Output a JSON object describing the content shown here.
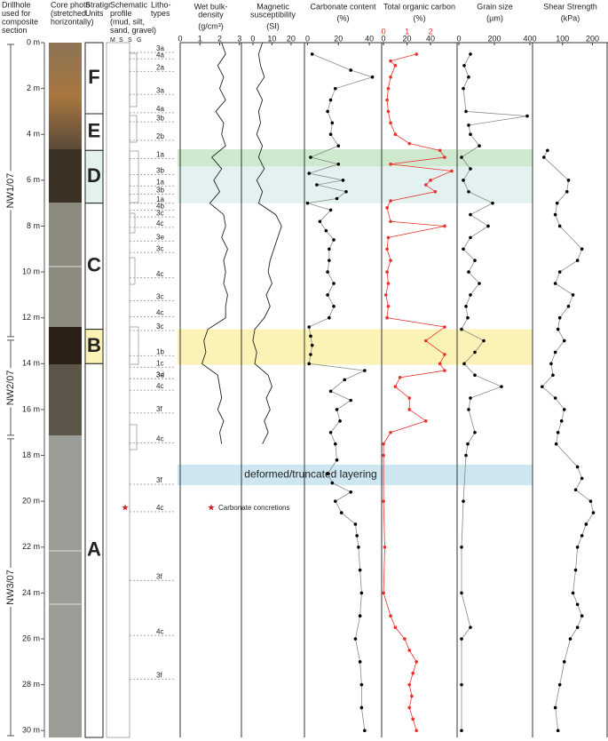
{
  "headers": [
    {
      "lines": [
        "Drillhole",
        "used for",
        "composite",
        "section"
      ]
    },
    {
      "lines": [
        "Core photo",
        "(stretched",
        "horizontally)"
      ]
    },
    {
      "lines": [
        "Stratigr.",
        "Units"
      ]
    },
    {
      "lines": [
        "Schematic",
        "profile",
        "(mud, silt,",
        "sand, gravel)"
      ]
    },
    {
      "lines": [
        "Litho-",
        "types"
      ]
    }
  ],
  "grain_classes": [
    "M",
    "S",
    "S",
    "G"
  ],
  "depth_axis": {
    "ylim": [
      0,
      30.3
    ],
    "yticks": [
      {
        "value": 0,
        "label": "0 m"
      },
      {
        "value": 2,
        "label": "2 m"
      },
      {
        "value": 4,
        "label": "4 m"
      },
      {
        "value": 6,
        "label": "6 m"
      },
      {
        "value": 8,
        "label": "8 m"
      },
      {
        "value": 10,
        "label": "10 m"
      },
      {
        "value": 12,
        "label": "12 m"
      },
      {
        "value": 14,
        "label": "14 m"
      },
      {
        "value": 16,
        "label": "16 m"
      },
      {
        "value": 18,
        "label": "18 m"
      },
      {
        "value": 20,
        "label": "20 m"
      },
      {
        "value": 22,
        "label": "22 m"
      },
      {
        "value": 24,
        "label": "24 m"
      },
      {
        "value": 26,
        "label": "26 m"
      },
      {
        "value": 28,
        "label": "28 m"
      },
      {
        "value": 30,
        "label": "30 m"
      }
    ]
  },
  "drillholes": [
    {
      "label": "NW1/07",
      "top": 0,
      "bottom": 12.9
    },
    {
      "label": "NW2/07",
      "top": 12.9,
      "bottom": 17.2
    },
    {
      "label": "NW3/07",
      "top": 17.2,
      "bottom": 30.3
    }
  ],
  "units": [
    {
      "label": "F",
      "top": 0,
      "bottom": 3.1,
      "color": "#ffffff"
    },
    {
      "label": "E",
      "top": 3.1,
      "bottom": 4.7,
      "color": "#ffffff"
    },
    {
      "label": "D",
      "top": 4.7,
      "bottom": 7.0,
      "color": "#e4f2ec"
    },
    {
      "label": "C",
      "top": 7.0,
      "bottom": 12.5,
      "color": "#ffffff"
    },
    {
      "label": "B",
      "top": 12.5,
      "bottom": 14.0,
      "color": "#fbf3b5"
    },
    {
      "label": "A",
      "top": 14.0,
      "bottom": 30.3,
      "color": "#ffffff"
    }
  ],
  "lithotypes": [
    {
      "label": "3a",
      "depth": 0.27
    },
    {
      "label": "4a",
      "depth": 0.55
    },
    {
      "label": "2a",
      "depth": 1.1
    },
    {
      "label": "3a",
      "depth": 2.1
    },
    {
      "label": "4a",
      "depth": 2.9
    },
    {
      "label": "3b",
      "depth": 3.3
    },
    {
      "label": "2b",
      "depth": 4.1
    },
    {
      "label": "1a",
      "depth": 4.9
    },
    {
      "label": "3b",
      "depth": 5.6
    },
    {
      "label": "1a",
      "depth": 6.1
    },
    {
      "label": "3b",
      "depth": 6.45
    },
    {
      "label": "1a",
      "depth": 6.85
    },
    {
      "label": "4b",
      "depth": 7.15
    },
    {
      "label": "3c",
      "depth": 7.45
    },
    {
      "label": "4c",
      "depth": 7.9
    },
    {
      "label": "3e",
      "depth": 8.5
    },
    {
      "label": "3c",
      "depth": 9.0
    },
    {
      "label": "4c",
      "depth": 10.1
    },
    {
      "label": "3c",
      "depth": 11.1
    },
    {
      "label": "4c",
      "depth": 11.8
    },
    {
      "label": "3c",
      "depth": 12.4
    },
    {
      "label": "1b",
      "depth": 13.5
    },
    {
      "label": "1c",
      "depth": 14.0
    },
    {
      "label": "3e",
      "depth": 14.5
    },
    {
      "label": "3d",
      "depth": 14.5
    },
    {
      "label": "4c",
      "depth": 15.0
    },
    {
      "label": "3f",
      "depth": 16.0
    },
    {
      "label": "4c",
      "depth": 17.3
    },
    {
      "label": "3f",
      "depth": 19.1
    },
    {
      "label": "4c",
      "depth": 20.3
    },
    {
      "label": "3f",
      "depth": 23.3
    },
    {
      "label": "4c",
      "depth": 25.7
    },
    {
      "label": "3f",
      "depth": 27.6
    }
  ],
  "highlights": [
    {
      "top": 4.65,
      "bottom": 5.4,
      "color": "#cfe9cf"
    },
    {
      "top": 5.4,
      "bottom": 7.0,
      "color": "#e3f2f0"
    },
    {
      "top": 12.5,
      "bottom": 14.05,
      "color": "#fbf3b5"
    },
    {
      "top": 18.4,
      "bottom": 19.3,
      "color": "#cde6f0",
      "label": "deformed/truncated layering"
    }
  ],
  "concretion": {
    "depth": 20.3,
    "label": "Carbonate concretions"
  },
  "chart_data": [
    {
      "type": "line",
      "title": [
        "Wet bulk-",
        "density"
      ],
      "unit": "(g/cm³)",
      "xlim": [
        0,
        3.1
      ],
      "xticks": [
        0,
        1,
        2,
        3
      ],
      "markers": false,
      "series": [
        {
          "color": "#222222",
          "depth": [
            0,
            0.5,
            1,
            1.5,
            2,
            2.5,
            3,
            3.5,
            4,
            4.5,
            5,
            5.5,
            6,
            6.5,
            7,
            7.5,
            8,
            8.5,
            9,
            9.5,
            10,
            10.5,
            11,
            11.5,
            12,
            12.5,
            13,
            13.5,
            14,
            14.5,
            15,
            15.5,
            16,
            16.5,
            17,
            17.5
          ],
          "values": [
            2.1,
            2.3,
            1.9,
            2.2,
            2.0,
            2.3,
            1.8,
            2.2,
            2.1,
            2.3,
            1.6,
            2.1,
            1.7,
            2.0,
            1.5,
            2.2,
            2.3,
            2.1,
            2.4,
            2.2,
            2.3,
            2.2,
            2.4,
            2.3,
            2.3,
            1.4,
            1.2,
            1.3,
            1.1,
            1.9,
            2.0,
            2.1,
            1.9,
            2.2,
            2.0,
            2.1
          ]
        }
      ]
    },
    {
      "type": "line",
      "title": [
        "Magnetic",
        "susceptibility"
      ],
      "unit": "(SI)",
      "xlim": [
        -6,
        27
      ],
      "xticks": [
        0,
        10,
        20
      ],
      "markers": false,
      "series": [
        {
          "color": "#222222",
          "depth": [
            0,
            0.5,
            1,
            1.5,
            2,
            2.5,
            3,
            3.5,
            4,
            4.5,
            5,
            5.5,
            6,
            6.5,
            7,
            7.5,
            8,
            8.5,
            9,
            9.5,
            10,
            10.5,
            11,
            11.5,
            12,
            12.5,
            13,
            13.5,
            14,
            14.5,
            15,
            15.5,
            16,
            16.5,
            17,
            17.5
          ],
          "values": [
            5,
            3,
            4,
            6,
            2,
            5,
            3,
            4,
            2,
            5,
            3,
            6,
            2,
            5,
            3,
            12,
            15,
            13,
            11,
            9,
            8,
            10,
            7,
            9,
            6,
            1,
            0,
            2,
            1,
            8,
            10,
            7,
            9,
            6,
            8,
            5
          ]
        }
      ]
    },
    {
      "type": "line",
      "title": [
        "Carbonate content"
      ],
      "unit": "(%)",
      "xlim": [
        -2,
        48
      ],
      "xticks": [
        0,
        20,
        40
      ],
      "markers": true,
      "series": [
        {
          "color": "#000000",
          "depth": [
            0.5,
            1.2,
            1.5,
            2.0,
            2.5,
            3.0,
            3.5,
            4.0,
            4.5,
            5.0,
            5.3,
            5.7,
            6.0,
            6.2,
            6.5,
            6.8,
            7.0,
            7.3,
            7.8,
            8.2,
            8.6,
            9.0,
            9.5,
            10.0,
            10.5,
            11.0,
            11.5,
            12.0,
            12.4,
            12.8,
            13.2,
            13.6,
            14.0,
            14.3,
            14.7,
            15.2,
            15.6,
            16.0,
            16.5,
            17.0,
            17.5,
            18.2,
            18.8,
            19.2,
            19.6,
            20.0,
            20.5,
            21.0,
            21.5,
            22.0,
            23.0,
            24.0,
            25.0,
            26.0,
            27.0,
            28.0,
            29.0,
            30.0
          ],
          "values": [
            3,
            28,
            42,
            18,
            15,
            13,
            16,
            15,
            20,
            2,
            20,
            1,
            23,
            6,
            25,
            19,
            0,
            15,
            8,
            12,
            17,
            14,
            14,
            13,
            17,
            13,
            17,
            14,
            1,
            2,
            3,
            2,
            1,
            37,
            24,
            15,
            28,
            19,
            21,
            15,
            18,
            19,
            13,
            16,
            28,
            18,
            22,
            31,
            32,
            33,
            34,
            35,
            34,
            31,
            34,
            35,
            35,
            37
          ]
        }
      ]
    },
    {
      "type": "line",
      "title": [
        "Total organic carbon"
      ],
      "unit": "(%)",
      "xlim": [
        -0.08,
        3.13
      ],
      "xticks": [
        0,
        1,
        2
      ],
      "x2lim": [
        -1.5,
        62.6
      ],
      "x2ticks": [
        0,
        20,
        40
      ],
      "markers": true,
      "series": [
        {
          "color": "#e8322c",
          "depth": [
            0.5,
            0.8,
            1.0,
            1.5,
            2.0,
            2.5,
            3.0,
            3.5,
            4.0,
            4.4,
            4.7,
            5.0,
            5.3,
            5.6,
            6.0,
            6.2,
            6.5,
            6.9,
            7.2,
            7.8,
            8.0,
            8.5,
            9.0,
            9.5,
            10.0,
            10.5,
            11.0,
            11.5,
            12.0,
            12.4,
            13.0,
            13.6,
            14.0,
            14.3,
            14.6,
            15.0,
            15.5,
            16.0,
            16.5,
            17.0,
            17.5,
            18,
            20,
            22,
            24,
            25.0,
            25.5,
            26.0,
            26.5,
            27.0,
            27.5,
            28.0,
            28.5,
            29.0,
            29.5,
            30.0
          ],
          "values": [
            1.4,
            0.3,
            0.5,
            0.3,
            0.2,
            0.15,
            0.2,
            0.3,
            0.5,
            1.1,
            2.4,
            2.6,
            0.3,
            2.9,
            2.0,
            1.8,
            2.2,
            0.3,
            0.15,
            0.3,
            2.6,
            0.2,
            0.15,
            0.3,
            0.15,
            0.2,
            0.1,
            0.2,
            0.15,
            2.6,
            1.8,
            2.6,
            2.4,
            2.6,
            0.7,
            0.5,
            1.1,
            1.1,
            1.8,
            0.3,
            0,
            0,
            0,
            0.05,
            0,
            0.3,
            0.5,
            0.9,
            1.1,
            1.4,
            1.25,
            1.1,
            1.2,
            1.1,
            1.25,
            1.4
          ]
        }
      ]
    },
    {
      "type": "line",
      "title": [
        "Grain size"
      ],
      "unit": "(µm)",
      "xlim": [
        -10,
        415
      ],
      "xticks": [
        0,
        200,
        400
      ],
      "markers": true,
      "series": [
        {
          "color": "#000000",
          "depth": [
            0.5,
            1.0,
            1.5,
            2.0,
            3.0,
            3.2,
            3.6,
            4.0,
            4.5,
            5.0,
            5.5,
            6.0,
            6.5,
            7.0,
            7.5,
            8.0,
            8.5,
            9.0,
            9.5,
            10.0,
            10.5,
            11.0,
            11.5,
            12.0,
            12.5,
            13.0,
            13.5,
            14.0,
            14.5,
            15.0,
            15.5,
            16.0,
            17.0,
            17.5,
            18.0,
            20.0,
            22.0,
            24.0,
            25.5,
            26.0,
            28.0,
            30.0
          ],
          "values": [
            65,
            30,
            55,
            25,
            40,
            385,
            55,
            65,
            115,
            15,
            65,
            25,
            55,
            190,
            65,
            165,
            65,
            25,
            90,
            55,
            115,
            65,
            40,
            50,
            15,
            140,
            90,
            30,
            90,
            240,
            65,
            55,
            90,
            50,
            40,
            25,
            15,
            15,
            65,
            15,
            15,
            15
          ]
        }
      ]
    },
    {
      "type": "line",
      "title": [
        "Shear Strength"
      ],
      "unit": "(kPa)",
      "xlim": [
        0,
        252
      ],
      "xticks": [
        100,
        200
      ],
      "markers": true,
      "series": [
        {
          "color": "#000000",
          "depth": [
            4.7,
            5.0,
            6.0,
            6.5,
            7.0,
            7.5,
            8.0,
            9.0,
            9.5,
            10.0,
            10.5,
            11.0,
            11.5,
            12.0,
            12.5,
            13.0,
            13.5,
            14.0,
            14.5,
            15.0,
            15.5,
            16.0,
            16.5,
            17.0,
            17.5,
            18.5,
            19.0,
            19.5,
            20.0,
            20.5,
            21.0,
            21.5,
            22.0,
            23.0,
            24.0,
            24.5,
            25.0,
            25.5,
            26.0,
            27.0,
            28.0,
            29.0,
            30.0
          ],
          "values": [
            50,
            38,
            120,
            115,
            82,
            76,
            91,
            165,
            150,
            91,
            76,
            135,
            120,
            91,
            85,
            106,
            76,
            62,
            68,
            32,
            76,
            106,
            97,
            85,
            79,
            150,
            165,
            144,
            194,
            203,
            179,
            165,
            150,
            144,
            135,
            150,
            165,
            150,
            126,
            106,
            91,
            76,
            85
          ]
        }
      ]
    }
  ]
}
